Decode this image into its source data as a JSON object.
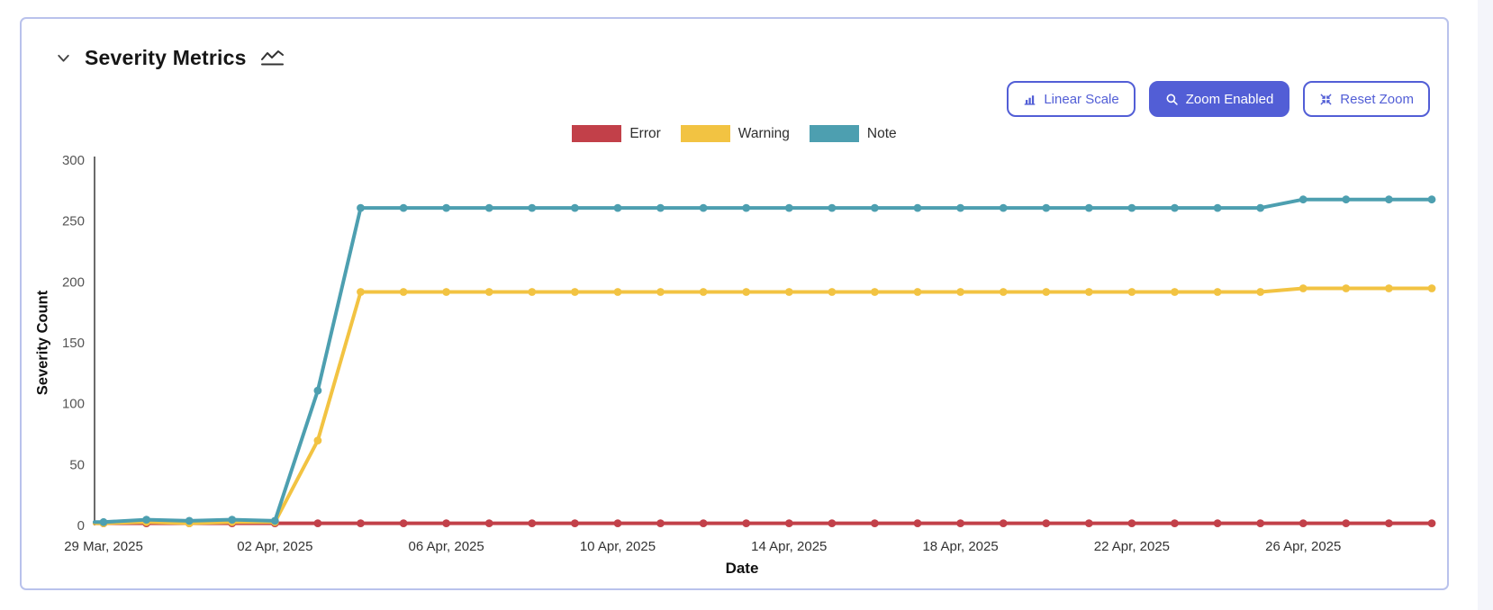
{
  "page": {
    "background": "#ffffff",
    "right_strip_color": "#f4f5fa"
  },
  "card": {
    "border_color": "#b9c2ec"
  },
  "header": {
    "title": "Severity Metrics"
  },
  "toolbar": {
    "accent": "#525ed6",
    "buttons": [
      {
        "label": "Linear Scale",
        "icon": "bar-chart-icon",
        "active": false
      },
      {
        "label": "Zoom Enabled",
        "icon": "magnifier-icon",
        "active": true
      },
      {
        "label": "Reset Zoom",
        "icon": "contract-icon",
        "active": false
      }
    ]
  },
  "legend": [
    {
      "label": "Error",
      "color": "#c24049"
    },
    {
      "label": "Warning",
      "color": "#f2c342"
    },
    {
      "label": "Note",
      "color": "#4d9fb0"
    }
  ],
  "chart_data": {
    "type": "line",
    "title": "Severity Metrics",
    "xlabel": "Date",
    "ylabel": "Severity Count",
    "ylim": [
      0,
      300
    ],
    "y_ticks": [
      0,
      50,
      100,
      150,
      200,
      250,
      300
    ],
    "grid": false,
    "legend_position": "top",
    "x_dates": [
      "2025-03-29",
      "2025-03-30",
      "2025-03-31",
      "2025-04-01",
      "2025-04-02",
      "2025-04-03",
      "2025-04-04",
      "2025-04-05",
      "2025-04-06",
      "2025-04-07",
      "2025-04-08",
      "2025-04-09",
      "2025-04-10",
      "2025-04-11",
      "2025-04-12",
      "2025-04-13",
      "2025-04-14",
      "2025-04-15",
      "2025-04-16",
      "2025-04-17",
      "2025-04-18",
      "2025-04-19",
      "2025-04-20",
      "2025-04-21",
      "2025-04-22",
      "2025-04-23",
      "2025-04-24",
      "2025-04-25",
      "2025-04-26",
      "2025-04-27",
      "2025-04-28",
      "2025-04-29"
    ],
    "x_tick_labels": [
      "29 Mar, 2025",
      "02 Apr, 2025",
      "06 Apr, 2025",
      "10 Apr, 2025",
      "14 Apr, 2025",
      "18 Apr, 2025",
      "22 Apr, 2025",
      "26 Apr, 2025"
    ],
    "x_tick_indices": [
      0,
      4,
      8,
      12,
      16,
      20,
      24,
      28
    ],
    "series": [
      {
        "name": "Error",
        "color": "#c24049",
        "values": [
          1,
          1,
          1,
          1,
          1,
          1,
          1,
          1,
          1,
          1,
          1,
          1,
          1,
          1,
          1,
          1,
          1,
          1,
          1,
          1,
          1,
          1,
          1,
          1,
          1,
          1,
          1,
          1,
          1,
          1,
          1,
          1
        ]
      },
      {
        "name": "Warning",
        "color": "#f2c342",
        "values": [
          1,
          2,
          1,
          2,
          2,
          69,
          191,
          191,
          191,
          191,
          191,
          191,
          191,
          191,
          191,
          191,
          191,
          191,
          191,
          191,
          191,
          191,
          191,
          191,
          191,
          191,
          191,
          191,
          194,
          194,
          194,
          194
        ]
      },
      {
        "name": "Note",
        "color": "#4d9fb0",
        "values": [
          2,
          4,
          3,
          4,
          3,
          110,
          260,
          260,
          260,
          260,
          260,
          260,
          260,
          260,
          260,
          260,
          260,
          260,
          260,
          260,
          260,
          260,
          260,
          260,
          260,
          260,
          260,
          260,
          267,
          267,
          267,
          267
        ]
      }
    ]
  }
}
